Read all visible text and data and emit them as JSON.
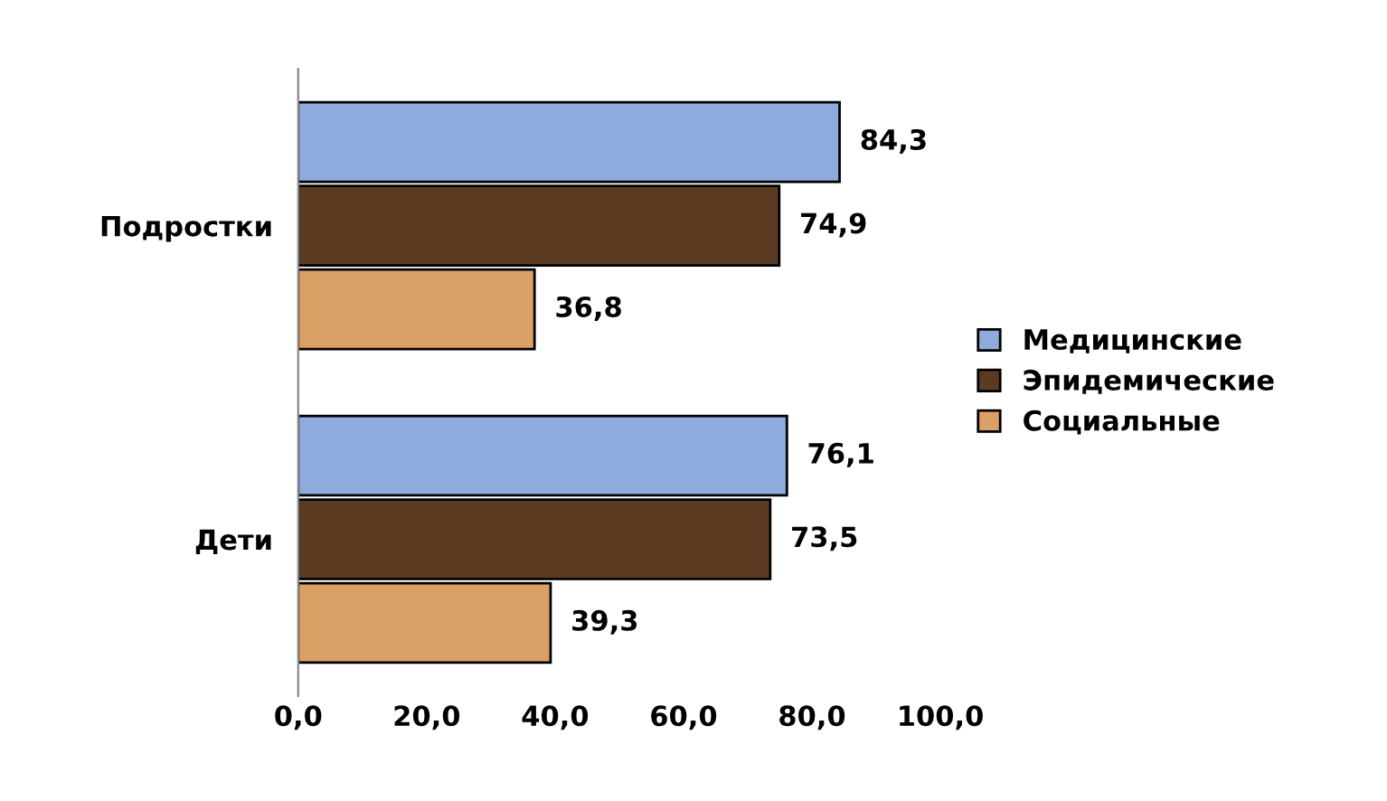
{
  "chart_data": {
    "type": "bar",
    "orientation": "horizontal",
    "categories": [
      "Подростки",
      "Дети"
    ],
    "series": [
      {
        "name": "Медицинские",
        "color": "#8faadc",
        "values": [
          84.3,
          76.1
        ],
        "value_labels": [
          "84,3",
          "76,1"
        ]
      },
      {
        "name": "Эпидемические",
        "color": "#5b3b22",
        "values": [
          74.9,
          73.5
        ],
        "value_labels": [
          "74,9",
          "73,5"
        ]
      },
      {
        "name": "Социальные",
        "color": "#dba066",
        "values": [
          36.8,
          39.3
        ],
        "value_labels": [
          "36,8",
          "39,3"
        ]
      }
    ],
    "xlim": [
      0,
      100
    ],
    "xticks": [
      {
        "value": 0,
        "label": "0,0"
      },
      {
        "value": 20,
        "label": "20,0"
      },
      {
        "value": 40,
        "label": "40,0"
      },
      {
        "value": 60,
        "label": "60,0"
      },
      {
        "value": 80,
        "label": "80,0"
      },
      {
        "value": 100,
        "label": "100,0"
      }
    ],
    "legend": "right",
    "grid": false
  }
}
